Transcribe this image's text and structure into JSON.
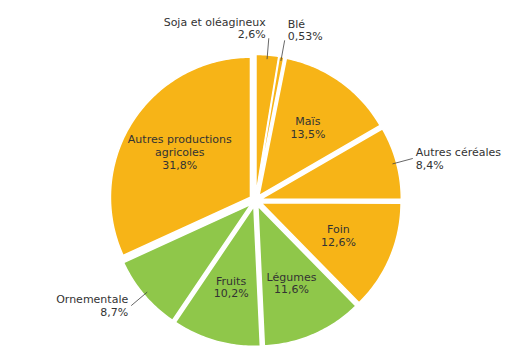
{
  "chart_data": {
    "type": "pie",
    "categories": [
      "Soja et oléagineux",
      "Blé",
      "Maïs",
      "Autres céréales",
      "Foin",
      "Légumes",
      "Fruits",
      "Ornementale",
      "Autres productions agricoles"
    ],
    "values": [
      2.6,
      0.53,
      13.5,
      8.4,
      12.6,
      11.6,
      10.2,
      8.7,
      31.8
    ],
    "value_labels": [
      "2,6%",
      "0,53%",
      "13,5%",
      "8,4%",
      "12,6%",
      "11,6%",
      "10,2%",
      "8,7%",
      "31,8%"
    ],
    "colors": [
      "#F7B417",
      "#F7B417",
      "#F7B417",
      "#F7B417",
      "#F7B417",
      "#8FC74A",
      "#8FC74A",
      "#8FC74A",
      "#F7B417"
    ],
    "data_labels": true
  }
}
